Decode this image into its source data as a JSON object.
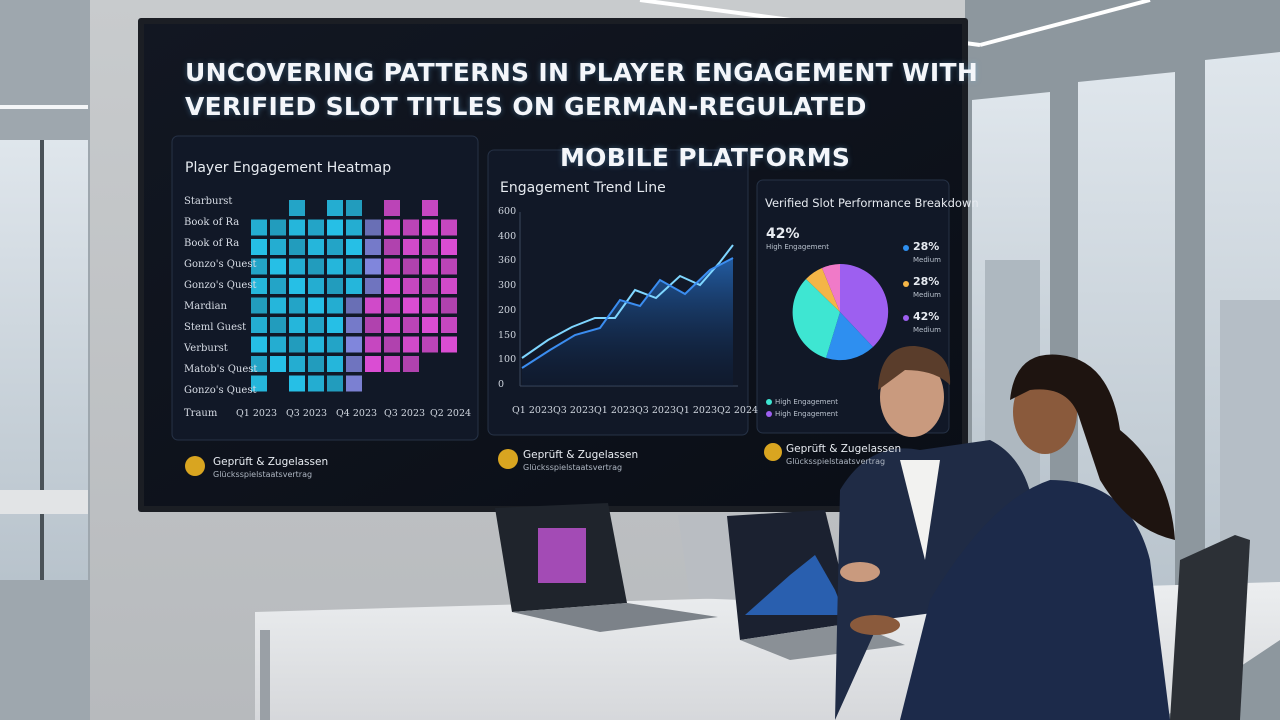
{
  "title_lines": [
    "UNCOVERING PATTERNS IN PLAYER ENGAGEMENT WITH",
    "VERIFIED SLOT TITLES ON GERMAN-REGULATED",
    "MOBILE PLATFORMS"
  ],
  "heatmap": {
    "title": "Player Engagement Heatmap",
    "rows": [
      "Starburst",
      "Book of Ra",
      "Book of Ra",
      "Gonzo's Quest",
      "Gonzo's Quest",
      "Mardian",
      "Steml Guest",
      "Verburst",
      "Matob's Quest",
      "Gonzo's Quest"
    ],
    "axis_label": "Traum",
    "columns": [
      "Q1 2023",
      "Q3 2023",
      "Q4 2023",
      "Q3 2023",
      "Q2 2024"
    ]
  },
  "trend": {
    "title": "Engagement Trend Line",
    "y_labels": [
      600,
      400,
      360,
      300,
      200,
      150,
      100,
      0
    ],
    "x_labels": [
      "Q1 2023",
      "Q3 2023",
      "Q1 2023",
      "Q3 2023",
      "Q1 2023",
      "Q2 2024"
    ]
  },
  "breakdown": {
    "title": "Verified Slot Performance Breakdown",
    "callout_value": "42%",
    "callout_label": "High Engagement",
    "legend": [
      {
        "value": "28%",
        "label": "Medium"
      },
      {
        "value": "28%",
        "label": "Medium"
      },
      {
        "value": "42%",
        "label": "Medium"
      }
    ],
    "bottom_legend": [
      "High Engagement",
      "High Engagement"
    ]
  },
  "badges": [
    {
      "title": "Geprüft & Zugelassen",
      "subtitle": "Glücksspielstaatsvertrag"
    },
    {
      "title": "Geprüft & Zugelassen",
      "subtitle": "Glücksspielstaatsvertrag"
    },
    {
      "title": "Geprüft & Zugelassen",
      "subtitle": "Glücksspielstaatsvertrag"
    }
  ]
}
